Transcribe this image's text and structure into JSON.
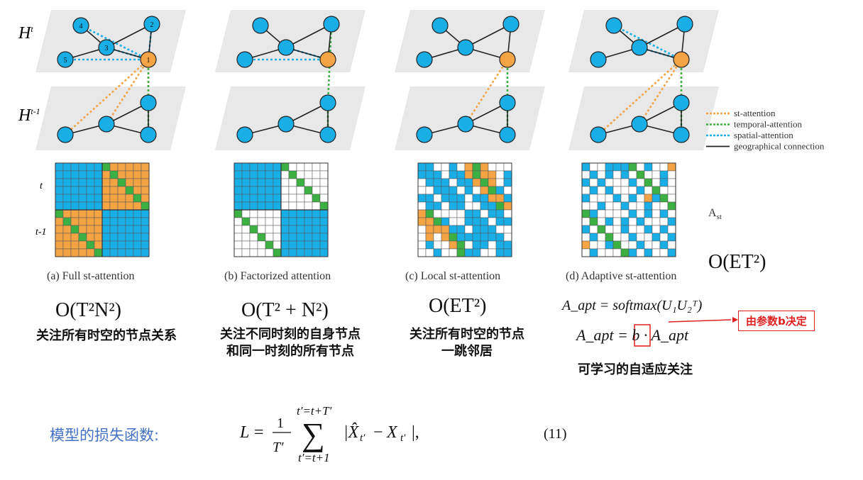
{
  "layer_labels": {
    "top": "H",
    "top_sup": "t",
    "bottom": "H",
    "bottom_sup": "t-1"
  },
  "node_numbers": [
    "1",
    "2",
    "3",
    "4",
    "5"
  ],
  "matrix_row_labels": {
    "t": "t",
    "t1": "t-1"
  },
  "legend": [
    {
      "label": "st-attention",
      "color": "#f5a445",
      "style": "dotted"
    },
    {
      "label": "temporal-attention",
      "color": "#3cb043",
      "style": "dotted"
    },
    {
      "label": "spatial-attention",
      "color": "#19aee6",
      "style": "dotted"
    },
    {
      "label": "geographical connection",
      "color": "#222222",
      "style": "solid"
    }
  ],
  "a_st_label": "A",
  "a_st_sub": "st",
  "captions": [
    "(a) Full st-attention",
    "(b) Factorized attention",
    "(c) Local st-attention",
    "(d) Adaptive st-attention"
  ],
  "complexities": [
    "O(T²N²)",
    "O(T² + N²)",
    "O(ET²)",
    "O(ET²)"
  ],
  "descriptions": {
    "a": [
      "关注所有时空的节点关系"
    ],
    "b": [
      "关注不同时刻的自身节点",
      "和同一时刻的所有节点"
    ],
    "c": [
      "关注所有时空的节点",
      "一跳邻居"
    ],
    "d": [
      "可学习的自适应关注"
    ]
  },
  "apt_formula_1": "A_apt = softmax(U₁U₂ᵀ)",
  "apt_formula_2": "A_apt = b · A_apt",
  "param_note": "由参数b决定",
  "loss_title": "模型的损失函数:",
  "loss_equation_number": "(11)",
  "colors": {
    "blue": "#19aee6",
    "orange": "#f5a445",
    "green": "#3cb043",
    "plane": "#e8e8e8",
    "title_blue": "#4472c4"
  }
}
